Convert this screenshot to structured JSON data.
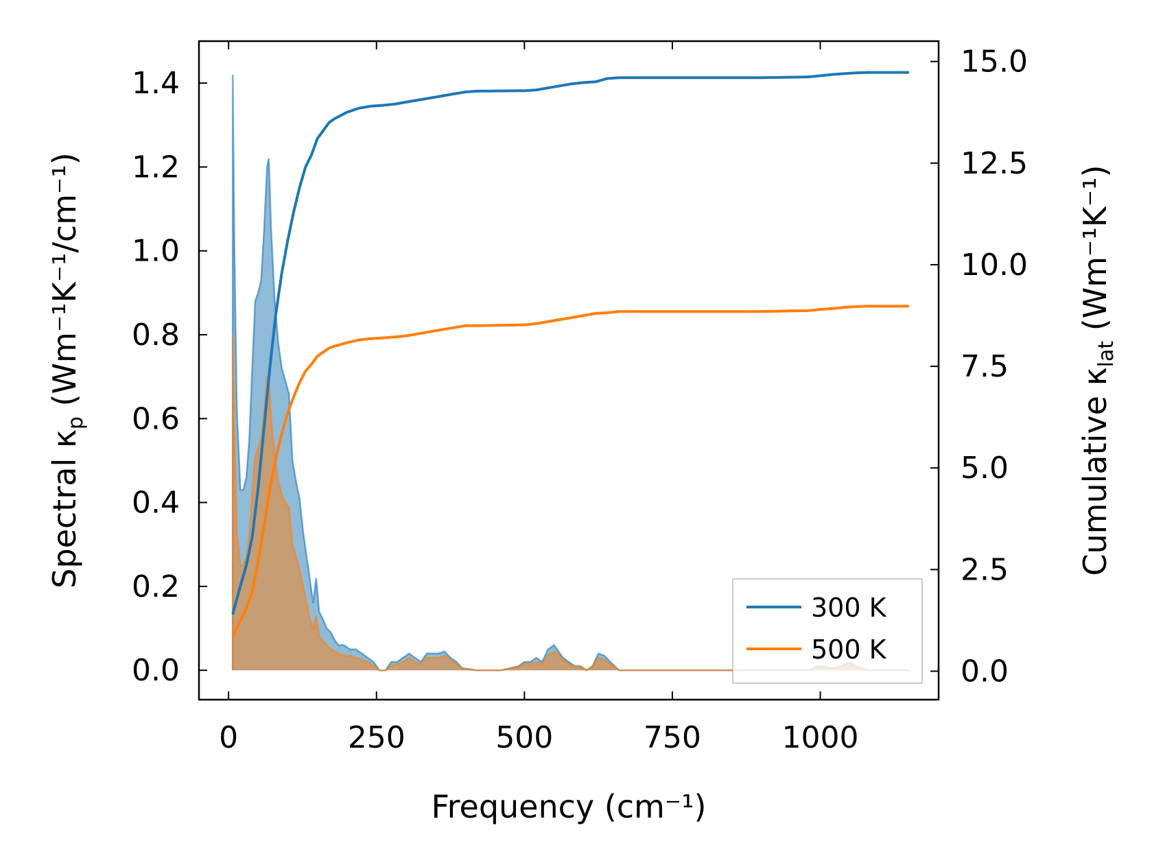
{
  "chart_data": {
    "type": "area",
    "xlabel": "Frequency (cm⁻¹)",
    "ylabel_left": {
      "base": "Spectral κ",
      "sub": "p",
      "rest": " (Wm⁻¹K⁻¹/cm⁻¹)"
    },
    "ylabel_right": {
      "base": "Cumulative κ",
      "sub": "lat",
      "rest": " (Wm⁻¹K⁻¹)"
    },
    "xlim": [
      -50,
      1200
    ],
    "ylim_left": [
      -0.07,
      1.5
    ],
    "ylim_right": [
      -0.7,
      15.5
    ],
    "x_ticks": [
      0,
      250,
      500,
      750,
      1000
    ],
    "x_tick_labels": [
      "0",
      "250",
      "500",
      "750",
      "1000"
    ],
    "y_left_ticks": [
      0,
      0.2,
      0.4,
      0.6,
      0.8,
      1.0,
      1.2,
      1.4
    ],
    "y_left_tick_labels": [
      "0.0",
      "0.2",
      "0.4",
      "0.6",
      "0.8",
      "1.0",
      "1.2",
      "1.4"
    ],
    "y_right_ticks": [
      0,
      2.5,
      5,
      7.5,
      10,
      12.5,
      15
    ],
    "y_right_tick_labels": [
      "0.0",
      "2.5",
      "5.0",
      "7.5",
      "10.0",
      "12.5",
      "15.0"
    ],
    "legend_position": "lower-right",
    "colors": {
      "300 K": "#1f77b4",
      "500 K": "#ff7f0e"
    },
    "spectral": [
      {
        "name": "300 K",
        "axis": "left",
        "points": [
          [
            7,
            0
          ],
          [
            7,
            1.42
          ],
          [
            10,
            1.0
          ],
          [
            14,
            0.62
          ],
          [
            20,
            0.43
          ],
          [
            25,
            0.43
          ],
          [
            30,
            0.46
          ],
          [
            35,
            0.55
          ],
          [
            40,
            0.72
          ],
          [
            45,
            0.88
          ],
          [
            50,
            0.9
          ],
          [
            55,
            0.93
          ],
          [
            60,
            1.05
          ],
          [
            65,
            1.2
          ],
          [
            68,
            1.22
          ],
          [
            72,
            1.05
          ],
          [
            78,
            0.88
          ],
          [
            84,
            0.78
          ],
          [
            90,
            0.72
          ],
          [
            96,
            0.69
          ],
          [
            102,
            0.66
          ],
          [
            108,
            0.5
          ],
          [
            114,
            0.45
          ],
          [
            120,
            0.41
          ],
          [
            126,
            0.33
          ],
          [
            132,
            0.27
          ],
          [
            138,
            0.21
          ],
          [
            143,
            0.16
          ],
          [
            148,
            0.22
          ],
          [
            153,
            0.14
          ],
          [
            160,
            0.12
          ],
          [
            166,
            0.1
          ],
          [
            173,
            0.09
          ],
          [
            180,
            0.07
          ],
          [
            186,
            0.06
          ],
          [
            195,
            0.06
          ],
          [
            205,
            0.05
          ],
          [
            215,
            0.05
          ],
          [
            225,
            0.04
          ],
          [
            235,
            0.03
          ],
          [
            245,
            0.02
          ],
          [
            255,
            0.0
          ],
          [
            265,
            0.0
          ],
          [
            275,
            0.02
          ],
          [
            285,
            0.02
          ],
          [
            295,
            0.03
          ],
          [
            305,
            0.04
          ],
          [
            315,
            0.03
          ],
          [
            325,
            0.02
          ],
          [
            335,
            0.04
          ],
          [
            345,
            0.04
          ],
          [
            355,
            0.04
          ],
          [
            365,
            0.045
          ],
          [
            375,
            0.03
          ],
          [
            385,
            0.02
          ],
          [
            395,
            0.005
          ],
          [
            420,
            0.0
          ],
          [
            460,
            0.0
          ],
          [
            470,
            0.003
          ],
          [
            490,
            0.01
          ],
          [
            500,
            0.02
          ],
          [
            510,
            0.02
          ],
          [
            520,
            0.03
          ],
          [
            530,
            0.02
          ],
          [
            540,
            0.05
          ],
          [
            550,
            0.06
          ],
          [
            555,
            0.05
          ],
          [
            565,
            0.03
          ],
          [
            575,
            0.02
          ],
          [
            585,
            0.01
          ],
          [
            595,
            0.01
          ],
          [
            605,
            0.0
          ],
          [
            615,
            0.01
          ],
          [
            625,
            0.04
          ],
          [
            635,
            0.035
          ],
          [
            645,
            0.02
          ],
          [
            660,
            0.0
          ],
          [
            900,
            0.0
          ],
          [
            980,
            0.0
          ],
          [
            995,
            0.01
          ],
          [
            1005,
            0.01
          ],
          [
            1020,
            0.005
          ],
          [
            1035,
            0.01
          ],
          [
            1050,
            0.02
          ],
          [
            1060,
            0.01
          ],
          [
            1080,
            0.0
          ],
          [
            1150,
            0.0
          ]
        ]
      },
      {
        "name": "500 K",
        "axis": "left",
        "points": [
          [
            7,
            0
          ],
          [
            7,
            0.8
          ],
          [
            10,
            0.56
          ],
          [
            14,
            0.33
          ],
          [
            20,
            0.25
          ],
          [
            25,
            0.25
          ],
          [
            30,
            0.27
          ],
          [
            35,
            0.32
          ],
          [
            40,
            0.42
          ],
          [
            45,
            0.51
          ],
          [
            50,
            0.53
          ],
          [
            55,
            0.55
          ],
          [
            60,
            0.62
          ],
          [
            65,
            0.7
          ],
          [
            68,
            0.7
          ],
          [
            72,
            0.6
          ],
          [
            78,
            0.51
          ],
          [
            84,
            0.45
          ],
          [
            90,
            0.42
          ],
          [
            96,
            0.4
          ],
          [
            102,
            0.39
          ],
          [
            108,
            0.3
          ],
          [
            114,
            0.27
          ],
          [
            120,
            0.24
          ],
          [
            126,
            0.2
          ],
          [
            132,
            0.16
          ],
          [
            138,
            0.12
          ],
          [
            143,
            0.1
          ],
          [
            148,
            0.13
          ],
          [
            153,
            0.08
          ],
          [
            160,
            0.07
          ],
          [
            166,
            0.06
          ],
          [
            173,
            0.05
          ],
          [
            180,
            0.045
          ],
          [
            186,
            0.04
          ],
          [
            195,
            0.035
          ],
          [
            205,
            0.035
          ],
          [
            215,
            0.03
          ],
          [
            225,
            0.025
          ],
          [
            235,
            0.02
          ],
          [
            245,
            0.01
          ],
          [
            255,
            0.0
          ],
          [
            265,
            0.0
          ],
          [
            275,
            0.01
          ],
          [
            285,
            0.015
          ],
          [
            295,
            0.02
          ],
          [
            305,
            0.03
          ],
          [
            315,
            0.02
          ],
          [
            325,
            0.015
          ],
          [
            335,
            0.03
          ],
          [
            345,
            0.03
          ],
          [
            355,
            0.03
          ],
          [
            365,
            0.035
          ],
          [
            375,
            0.025
          ],
          [
            385,
            0.015
          ],
          [
            395,
            0.003
          ],
          [
            420,
            0.0
          ],
          [
            460,
            0.0
          ],
          [
            470,
            0.002
          ],
          [
            490,
            0.008
          ],
          [
            500,
            0.015
          ],
          [
            510,
            0.015
          ],
          [
            520,
            0.02
          ],
          [
            530,
            0.015
          ],
          [
            540,
            0.035
          ],
          [
            550,
            0.045
          ],
          [
            555,
            0.04
          ],
          [
            565,
            0.025
          ],
          [
            575,
            0.015
          ],
          [
            585,
            0.008
          ],
          [
            595,
            0.008
          ],
          [
            605,
            0.0
          ],
          [
            615,
            0.008
          ],
          [
            625,
            0.03
          ],
          [
            635,
            0.025
          ],
          [
            645,
            0.015
          ],
          [
            660,
            0.0
          ],
          [
            900,
            0.0
          ],
          [
            980,
            0.0
          ],
          [
            995,
            0.007
          ],
          [
            1005,
            0.007
          ],
          [
            1020,
            0.003
          ],
          [
            1035,
            0.007
          ],
          [
            1050,
            0.015
          ],
          [
            1060,
            0.007
          ],
          [
            1080,
            0.0
          ],
          [
            1150,
            0.0
          ]
        ]
      }
    ],
    "cumulative": [
      {
        "name": "300 K",
        "axis": "right",
        "points": [
          [
            7,
            1.4
          ],
          [
            20,
            2.1
          ],
          [
            30,
            2.6
          ],
          [
            40,
            3.3
          ],
          [
            50,
            4.5
          ],
          [
            60,
            6.0
          ],
          [
            70,
            7.5
          ],
          [
            80,
            8.8
          ],
          [
            90,
            9.8
          ],
          [
            100,
            10.6
          ],
          [
            110,
            11.3
          ],
          [
            120,
            11.9
          ],
          [
            130,
            12.4
          ],
          [
            140,
            12.7
          ],
          [
            150,
            13.1
          ],
          [
            160,
            13.3
          ],
          [
            170,
            13.5
          ],
          [
            180,
            13.6
          ],
          [
            200,
            13.75
          ],
          [
            220,
            13.85
          ],
          [
            240,
            13.9
          ],
          [
            260,
            13.92
          ],
          [
            280,
            13.95
          ],
          [
            300,
            14.0
          ],
          [
            320,
            14.05
          ],
          [
            340,
            14.1
          ],
          [
            360,
            14.15
          ],
          [
            380,
            14.2
          ],
          [
            400,
            14.25
          ],
          [
            420,
            14.27
          ],
          [
            500,
            14.28
          ],
          [
            520,
            14.3
          ],
          [
            540,
            14.35
          ],
          [
            560,
            14.4
          ],
          [
            580,
            14.45
          ],
          [
            600,
            14.48
          ],
          [
            620,
            14.5
          ],
          [
            640,
            14.58
          ],
          [
            660,
            14.6
          ],
          [
            900,
            14.6
          ],
          [
            980,
            14.62
          ],
          [
            1000,
            14.65
          ],
          [
            1020,
            14.68
          ],
          [
            1040,
            14.7
          ],
          [
            1060,
            14.72
          ],
          [
            1080,
            14.73
          ],
          [
            1150,
            14.73
          ]
        ]
      },
      {
        "name": "500 K",
        "axis": "right",
        "points": [
          [
            7,
            0.85
          ],
          [
            20,
            1.25
          ],
          [
            30,
            1.55
          ],
          [
            40,
            1.95
          ],
          [
            50,
            2.7
          ],
          [
            60,
            3.6
          ],
          [
            70,
            4.5
          ],
          [
            80,
            5.25
          ],
          [
            90,
            5.85
          ],
          [
            100,
            6.35
          ],
          [
            110,
            6.75
          ],
          [
            120,
            7.1
          ],
          [
            130,
            7.38
          ],
          [
            140,
            7.55
          ],
          [
            150,
            7.75
          ],
          [
            160,
            7.85
          ],
          [
            170,
            7.95
          ],
          [
            180,
            8.0
          ],
          [
            200,
            8.08
          ],
          [
            220,
            8.15
          ],
          [
            240,
            8.18
          ],
          [
            260,
            8.2
          ],
          [
            280,
            8.22
          ],
          [
            300,
            8.25
          ],
          [
            320,
            8.3
          ],
          [
            340,
            8.35
          ],
          [
            360,
            8.4
          ],
          [
            380,
            8.45
          ],
          [
            400,
            8.5
          ],
          [
            420,
            8.5
          ],
          [
            500,
            8.52
          ],
          [
            520,
            8.55
          ],
          [
            540,
            8.6
          ],
          [
            560,
            8.65
          ],
          [
            580,
            8.7
          ],
          [
            600,
            8.75
          ],
          [
            620,
            8.8
          ],
          [
            640,
            8.82
          ],
          [
            660,
            8.85
          ],
          [
            900,
            8.85
          ],
          [
            980,
            8.87
          ],
          [
            1000,
            8.9
          ],
          [
            1020,
            8.92
          ],
          [
            1040,
            8.95
          ],
          [
            1060,
            8.97
          ],
          [
            1080,
            8.98
          ],
          [
            1150,
            8.98
          ]
        ]
      }
    ],
    "legend": [
      "300 K",
      "500 K"
    ]
  }
}
